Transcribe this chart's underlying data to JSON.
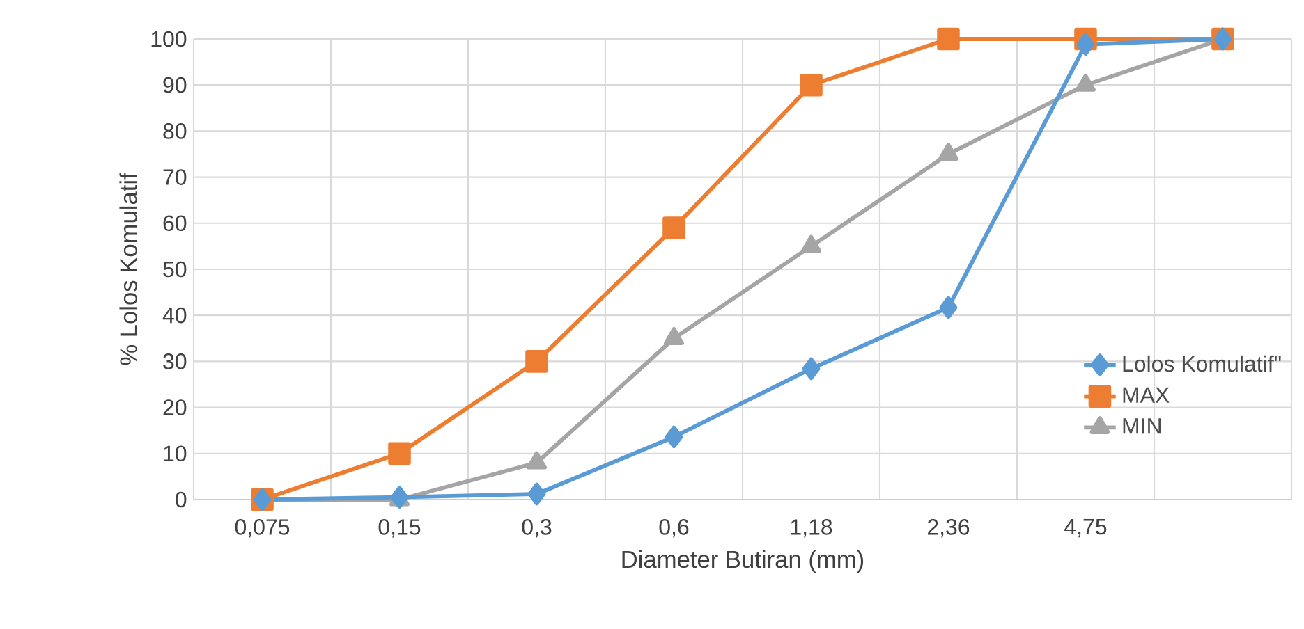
{
  "chart_data": {
    "type": "line",
    "xlabel": "Diameter Butiran (mm)",
    "ylabel": "% Lolos Komulatif",
    "categories": [
      "0,075",
      "0,15",
      "0,3",
      "0,6",
      "1,18",
      "2,36",
      "4,75",
      null
    ],
    "series": [
      {
        "name": "Lolos Komulatif\"",
        "color": "#5b9bd5",
        "marker": "diamond",
        "values": [
          0,
          0.5,
          1.2,
          13.6,
          28.4,
          41.7,
          98.8,
          100
        ]
      },
      {
        "name": "MAX",
        "color": "#ed7d31",
        "marker": "square",
        "values": [
          0,
          10,
          30,
          59,
          90,
          100,
          100,
          100
        ]
      },
      {
        "name": "MIN",
        "color": "#a5a5a5",
        "marker": "triangle",
        "values": [
          0,
          0,
          8,
          35,
          55,
          75,
          90,
          100
        ]
      }
    ],
    "ylim": [
      0,
      100
    ],
    "yticks": [
      0,
      10,
      20,
      30,
      40,
      50,
      60,
      70,
      80,
      90,
      100
    ],
    "grid": true,
    "legend": "right",
    "line_style": "solid"
  }
}
